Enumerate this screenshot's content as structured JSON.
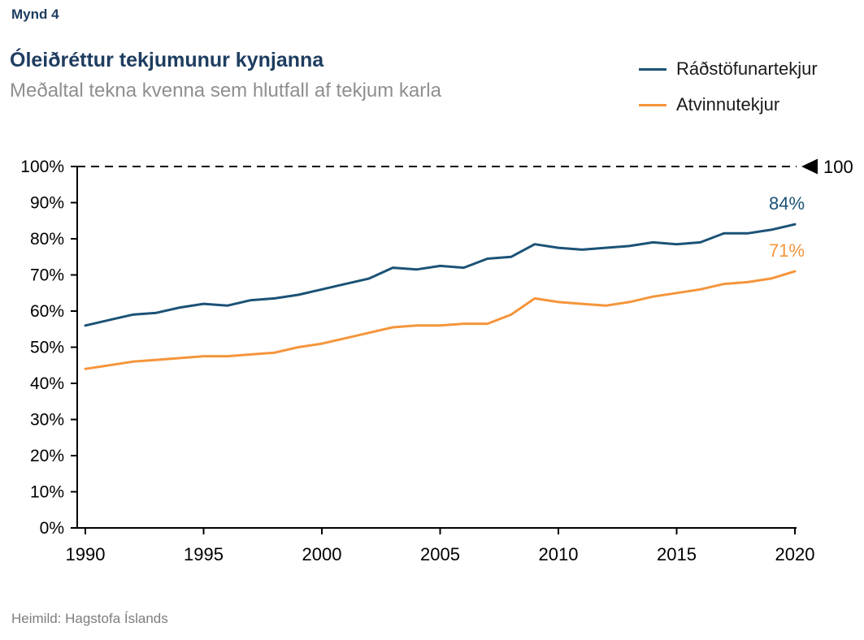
{
  "figure_label": "Mynd 4",
  "title": "Óleiðréttur tekjumunur kynjanna",
  "subtitle": "Meðaltal tekna kvenna sem hlutfall af tekjum karla",
  "source": "Heimild: Hagstofa Íslands",
  "colors": {
    "title_navy": "#1e3d60",
    "subtitle_gray": "#8f8f8f",
    "series_blue": "#1b5276",
    "series_orange": "#f5953b",
    "axis_black": "#000000"
  },
  "legend": [
    {
      "label": "Ráðstöfunartekjur",
      "color": "#1b5276"
    },
    {
      "label": "Atvinnutekjur",
      "color": "#f5953b"
    }
  ],
  "chart_data": {
    "type": "line",
    "title": "Óleiðréttur tekjumunur kynjanna",
    "subtitle": "Meðaltal tekna kvenna sem hlutfall af tekjum karla",
    "xlabel": "",
    "ylabel": "",
    "ylim": [
      0,
      100
    ],
    "ytick_step": 10,
    "ytick_suffix": "%",
    "xticks": [
      1990,
      1995,
      2000,
      2005,
      2010,
      2015,
      2020
    ],
    "grid": false,
    "legend_position": "top-right",
    "x": [
      1990,
      1991,
      1992,
      1993,
      1994,
      1995,
      1996,
      1997,
      1998,
      1999,
      2000,
      2001,
      2002,
      2003,
      2004,
      2005,
      2006,
      2007,
      2008,
      2009,
      2010,
      2011,
      2012,
      2013,
      2014,
      2015,
      2016,
      2017,
      2018,
      2019,
      2020
    ],
    "series": [
      {
        "name": "Ráðstöfunartekjur",
        "color": "#1b5276",
        "values": [
          56,
          57.5,
          59,
          59.5,
          61,
          62,
          61.5,
          63,
          63.5,
          64.5,
          66,
          67.5,
          69,
          72,
          71.5,
          72.5,
          72,
          74.5,
          75,
          78.5,
          77.5,
          77,
          77.5,
          78,
          79,
          78.5,
          79,
          81.5,
          81.5,
          82.5,
          84
        ]
      },
      {
        "name": "Atvinnutekjur",
        "color": "#f5953b",
        "values": [
          44,
          45,
          46,
          46.5,
          47,
          47.5,
          47.5,
          48,
          48.5,
          50,
          51,
          52.5,
          54,
          55.5,
          56,
          56,
          56.5,
          56.5,
          59,
          63.5,
          62.5,
          62,
          61.5,
          62.5,
          64,
          65,
          66,
          67.5,
          68,
          69,
          71
        ]
      }
    ],
    "reference_line": {
      "value": 100,
      "label": "100",
      "marker": "left-triangle",
      "style": "dashed"
    },
    "end_labels": [
      {
        "series": "Ráðstöfunartekjur",
        "text": "84%"
      },
      {
        "series": "Atvinnutekjur",
        "text": "71%"
      }
    ]
  }
}
